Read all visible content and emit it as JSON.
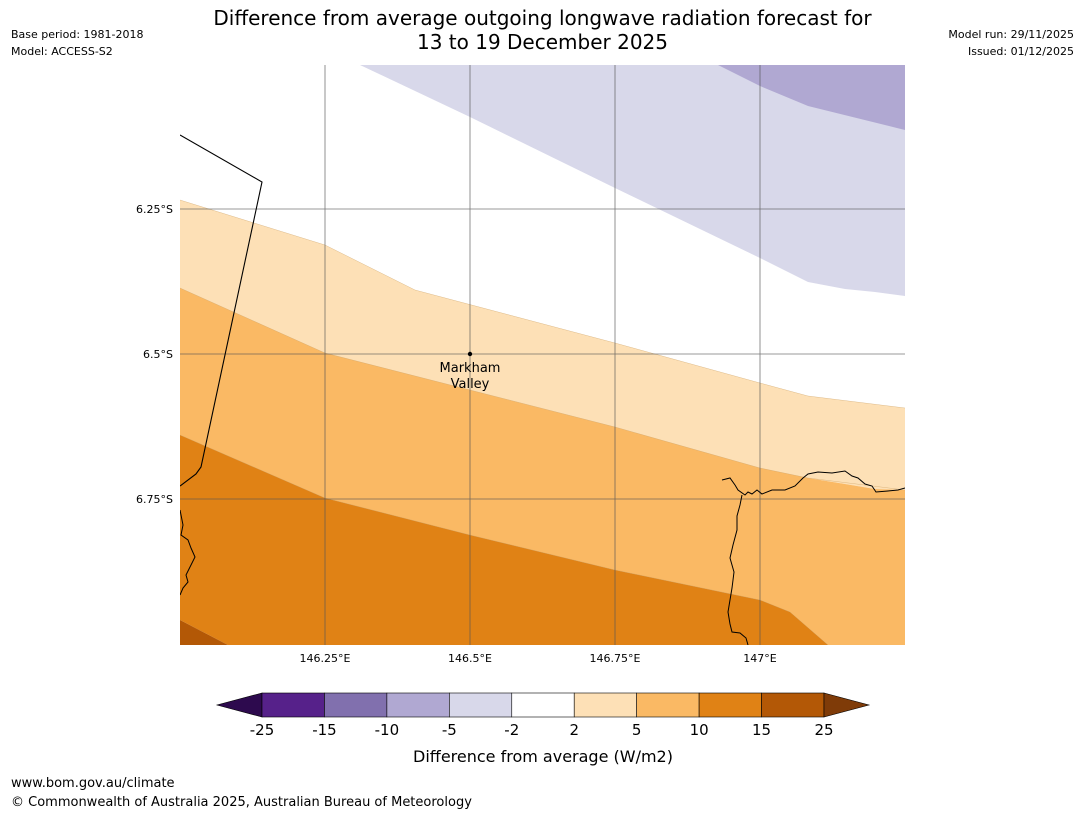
{
  "header": {
    "title_line1": "Difference from average outgoing longwave radiation forecast for",
    "title_line2": "13 to 19 December 2025",
    "base_period": "Base period: 1981-2018",
    "model": "Model: ACCESS-S2",
    "model_run": "Model run: 29/11/2025",
    "issued": "Issued: 01/12/2025"
  },
  "map": {
    "lat_labels": [
      "6.25°S",
      "6.5°S",
      "6.75°S"
    ],
    "lon_labels": [
      "146.25°E",
      "146.5°E",
      "146.75°E",
      "147°E"
    ],
    "place_line1": "Markham",
    "place_line2": "Valley"
  },
  "legend": {
    "ticks": [
      "-25",
      "-15",
      "-10",
      "-5",
      "-2",
      "2",
      "5",
      "10",
      "15",
      "25"
    ],
    "colors": [
      "#2d0a4e",
      "#56218a",
      "#8170ae",
      "#b0a8d2",
      "#d8d8ea",
      "#ffffff",
      "#fde0b6",
      "#fab964",
      "#e08215",
      "#b35806",
      "#7f3b08"
    ],
    "title": "Difference from average (W/m2)"
  },
  "footer": {
    "url": "www.bom.gov.au/climate",
    "copyright": "© Commonwealth of Australia 2025, Australian Bureau of Meteorology"
  }
}
